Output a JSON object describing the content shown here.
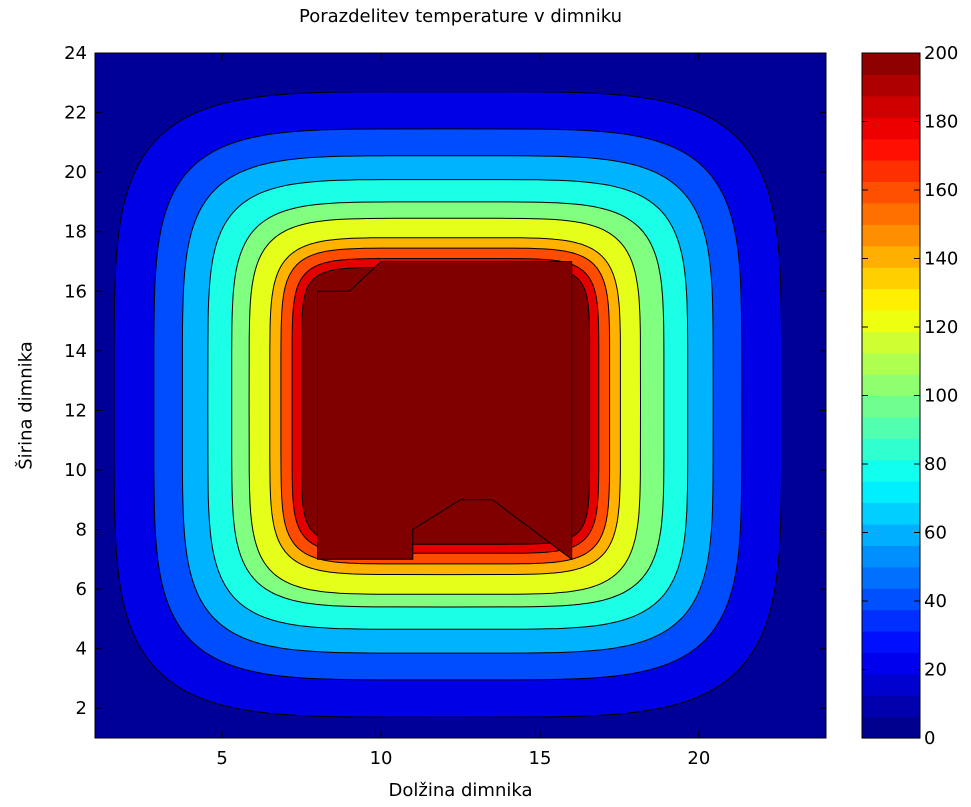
{
  "chart_data": {
    "type": "contour",
    "title": "Porazdelitev temperature v dimniku",
    "xlabel": "Dolžina dimnika",
    "ylabel": "Širina dimnika",
    "xlim": [
      1,
      24
    ],
    "ylim": [
      1,
      24
    ],
    "xticks": [
      5,
      10,
      15,
      20
    ],
    "yticks": [
      2,
      4,
      6,
      8,
      10,
      12,
      14,
      16,
      18,
      20,
      22,
      24
    ],
    "colormap": "jet",
    "colorbar": {
      "range": [
        0,
        200
      ],
      "ticks": [
        0,
        20,
        40,
        60,
        80,
        100,
        120,
        140,
        160,
        180,
        200
      ]
    },
    "contour_levels": [
      10,
      30,
      50,
      70,
      90,
      110,
      130,
      150,
      170,
      190
    ],
    "hot_region": {
      "temperature": 200,
      "polygon": [
        [
          8,
          16
        ],
        [
          9,
          16
        ],
        [
          10,
          17
        ],
        [
          16,
          17
        ],
        [
          16,
          7
        ],
        [
          13.5,
          9
        ],
        [
          12.5,
          9
        ],
        [
          11,
          8
        ],
        [
          11,
          7
        ],
        [
          8,
          7
        ]
      ]
    },
    "grid": false
  }
}
